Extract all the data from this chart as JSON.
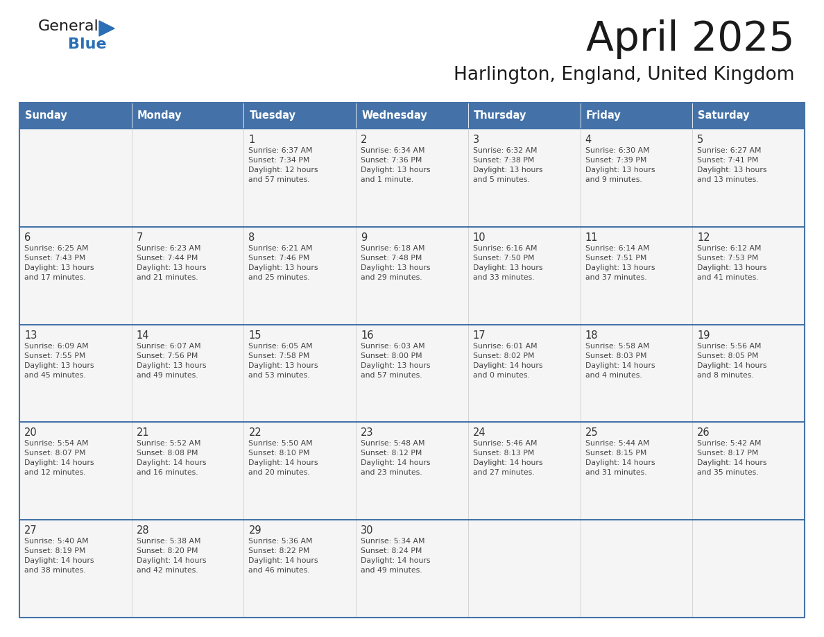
{
  "title": "April 2025",
  "subtitle": "Harlington, England, United Kingdom",
  "days_of_week": [
    "Sunday",
    "Monday",
    "Tuesday",
    "Wednesday",
    "Thursday",
    "Friday",
    "Saturday"
  ],
  "header_bg": "#4472a8",
  "header_text": "#ffffff",
  "row_bg": "#f5f5f5",
  "row_divider": "#4472a8",
  "cell_border": "#cccccc",
  "day_num_color": "#333333",
  "text_color": "#444444",
  "title_color": "#1a1a1a",
  "subtitle_color": "#1a1a1a",
  "logo_general_color": "#1a1a1a",
  "logo_blue_color": "#2a6eb5",
  "logo_triangle_color": "#2a6eb5",
  "calendar_data": [
    [
      {
        "day": null,
        "text": ""
      },
      {
        "day": null,
        "text": ""
      },
      {
        "day": 1,
        "text": "Sunrise: 6:37 AM\nSunset: 7:34 PM\nDaylight: 12 hours\nand 57 minutes."
      },
      {
        "day": 2,
        "text": "Sunrise: 6:34 AM\nSunset: 7:36 PM\nDaylight: 13 hours\nand 1 minute."
      },
      {
        "day": 3,
        "text": "Sunrise: 6:32 AM\nSunset: 7:38 PM\nDaylight: 13 hours\nand 5 minutes."
      },
      {
        "day": 4,
        "text": "Sunrise: 6:30 AM\nSunset: 7:39 PM\nDaylight: 13 hours\nand 9 minutes."
      },
      {
        "day": 5,
        "text": "Sunrise: 6:27 AM\nSunset: 7:41 PM\nDaylight: 13 hours\nand 13 minutes."
      }
    ],
    [
      {
        "day": 6,
        "text": "Sunrise: 6:25 AM\nSunset: 7:43 PM\nDaylight: 13 hours\nand 17 minutes."
      },
      {
        "day": 7,
        "text": "Sunrise: 6:23 AM\nSunset: 7:44 PM\nDaylight: 13 hours\nand 21 minutes."
      },
      {
        "day": 8,
        "text": "Sunrise: 6:21 AM\nSunset: 7:46 PM\nDaylight: 13 hours\nand 25 minutes."
      },
      {
        "day": 9,
        "text": "Sunrise: 6:18 AM\nSunset: 7:48 PM\nDaylight: 13 hours\nand 29 minutes."
      },
      {
        "day": 10,
        "text": "Sunrise: 6:16 AM\nSunset: 7:50 PM\nDaylight: 13 hours\nand 33 minutes."
      },
      {
        "day": 11,
        "text": "Sunrise: 6:14 AM\nSunset: 7:51 PM\nDaylight: 13 hours\nand 37 minutes."
      },
      {
        "day": 12,
        "text": "Sunrise: 6:12 AM\nSunset: 7:53 PM\nDaylight: 13 hours\nand 41 minutes."
      }
    ],
    [
      {
        "day": 13,
        "text": "Sunrise: 6:09 AM\nSunset: 7:55 PM\nDaylight: 13 hours\nand 45 minutes."
      },
      {
        "day": 14,
        "text": "Sunrise: 6:07 AM\nSunset: 7:56 PM\nDaylight: 13 hours\nand 49 minutes."
      },
      {
        "day": 15,
        "text": "Sunrise: 6:05 AM\nSunset: 7:58 PM\nDaylight: 13 hours\nand 53 minutes."
      },
      {
        "day": 16,
        "text": "Sunrise: 6:03 AM\nSunset: 8:00 PM\nDaylight: 13 hours\nand 57 minutes."
      },
      {
        "day": 17,
        "text": "Sunrise: 6:01 AM\nSunset: 8:02 PM\nDaylight: 14 hours\nand 0 minutes."
      },
      {
        "day": 18,
        "text": "Sunrise: 5:58 AM\nSunset: 8:03 PM\nDaylight: 14 hours\nand 4 minutes."
      },
      {
        "day": 19,
        "text": "Sunrise: 5:56 AM\nSunset: 8:05 PM\nDaylight: 14 hours\nand 8 minutes."
      }
    ],
    [
      {
        "day": 20,
        "text": "Sunrise: 5:54 AM\nSunset: 8:07 PM\nDaylight: 14 hours\nand 12 minutes."
      },
      {
        "day": 21,
        "text": "Sunrise: 5:52 AM\nSunset: 8:08 PM\nDaylight: 14 hours\nand 16 minutes."
      },
      {
        "day": 22,
        "text": "Sunrise: 5:50 AM\nSunset: 8:10 PM\nDaylight: 14 hours\nand 20 minutes."
      },
      {
        "day": 23,
        "text": "Sunrise: 5:48 AM\nSunset: 8:12 PM\nDaylight: 14 hours\nand 23 minutes."
      },
      {
        "day": 24,
        "text": "Sunrise: 5:46 AM\nSunset: 8:13 PM\nDaylight: 14 hours\nand 27 minutes."
      },
      {
        "day": 25,
        "text": "Sunrise: 5:44 AM\nSunset: 8:15 PM\nDaylight: 14 hours\nand 31 minutes."
      },
      {
        "day": 26,
        "text": "Sunrise: 5:42 AM\nSunset: 8:17 PM\nDaylight: 14 hours\nand 35 minutes."
      }
    ],
    [
      {
        "day": 27,
        "text": "Sunrise: 5:40 AM\nSunset: 8:19 PM\nDaylight: 14 hours\nand 38 minutes."
      },
      {
        "day": 28,
        "text": "Sunrise: 5:38 AM\nSunset: 8:20 PM\nDaylight: 14 hours\nand 42 minutes."
      },
      {
        "day": 29,
        "text": "Sunrise: 5:36 AM\nSunset: 8:22 PM\nDaylight: 14 hours\nand 46 minutes."
      },
      {
        "day": 30,
        "text": "Sunrise: 5:34 AM\nSunset: 8:24 PM\nDaylight: 14 hours\nand 49 minutes."
      },
      {
        "day": null,
        "text": ""
      },
      {
        "day": null,
        "text": ""
      },
      {
        "day": null,
        "text": ""
      }
    ]
  ]
}
